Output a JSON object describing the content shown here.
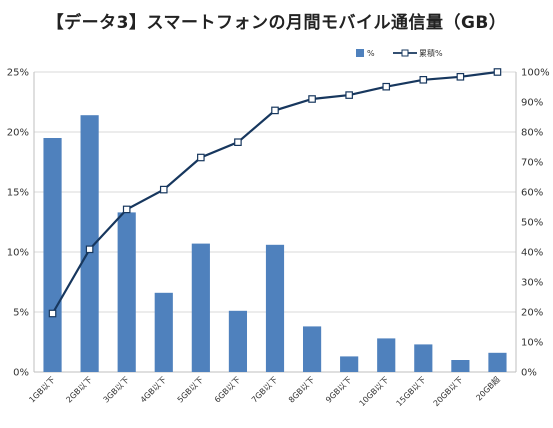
{
  "title": "【データ3】スマートフォンの月間モバイル通信量（GB）",
  "chart_data": {
    "type": "bar+line",
    "title": "【データ3】スマートフォンの月間モバイル通信量（GB）",
    "categories": [
      "1GB以下",
      "2GB以下",
      "3GB以下",
      "4GB以下",
      "5GB以下",
      "6GB以下",
      "7GB以下",
      "8GB以下",
      "9GB以下",
      "10GB以下",
      "15GB以下",
      "20GB以下",
      "20GB超"
    ],
    "series": [
      {
        "name": "%",
        "type": "bar",
        "axis": "left",
        "color": "#4f81bd",
        "values": [
          19.5,
          21.4,
          13.3,
          6.6,
          10.7,
          5.1,
          10.6,
          3.8,
          1.3,
          2.8,
          2.3,
          1.0,
          1.6
        ]
      },
      {
        "name": "累積%",
        "type": "line",
        "axis": "right",
        "color": "#17375e",
        "values": [
          19.5,
          40.9,
          54.2,
          60.8,
          71.5,
          76.6,
          87.2,
          91.0,
          92.3,
          95.1,
          97.4,
          98.4,
          100.0
        ]
      }
    ],
    "left_axis": {
      "min": 0,
      "max": 25,
      "step": 5,
      "ticks": [
        "0%",
        "5%",
        "10%",
        "15%",
        "20%",
        "25%"
      ]
    },
    "right_axis": {
      "min": 0,
      "max": 100,
      "step": 10,
      "ticks": [
        "0%",
        "10%",
        "20%",
        "30%",
        "40%",
        "50%",
        "60%",
        "70%",
        "80%",
        "90%",
        "100%"
      ]
    },
    "grid": true,
    "legend_position": "top-right"
  }
}
